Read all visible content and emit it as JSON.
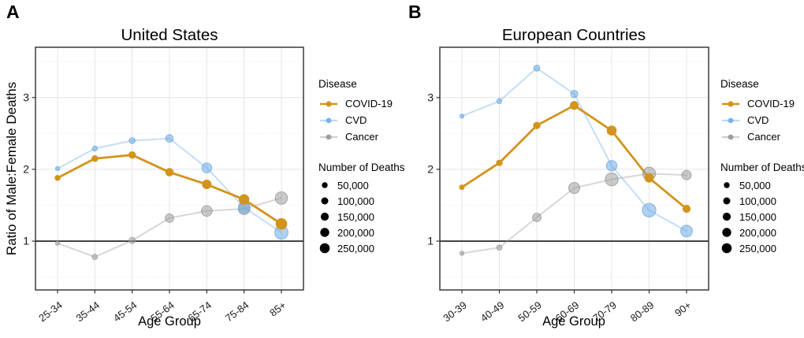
{
  "legend": {
    "disease_title": "Disease",
    "diseases": [
      {
        "label": "COVID-19",
        "color": "#D2941C"
      },
      {
        "label": "CVD",
        "color": "#6FACE4"
      },
      {
        "label": "Cancer",
        "color": "#969696"
      }
    ],
    "size_title": "Number of Deaths",
    "sizes": [
      {
        "label": "50,000",
        "r": 3.7
      },
      {
        "label": "100,000",
        "r": 4.5
      },
      {
        "label": "150,000",
        "r": 5.1
      },
      {
        "label": "200,000",
        "r": 5.7
      },
      {
        "label": "250,000",
        "r": 6.3
      }
    ]
  },
  "chart_data": [
    {
      "type": "line",
      "panel_label": "A",
      "title": "United States",
      "xlabel": "Age Group",
      "ylabel": "Ratio of Male:Female Deaths",
      "categories": [
        "25-34",
        "35-44",
        "45-54",
        "55-64",
        "65-74",
        "75-84",
        "85+"
      ],
      "ylim": [
        0.32,
        3.7
      ],
      "yticks": [
        1,
        2,
        3
      ],
      "yticks_minor": [
        0.5,
        1.5,
        2.5,
        3.5
      ],
      "reference_line_y": 1,
      "grid": true,
      "legend_position": "right",
      "size_legend_labels": [
        "50,000",
        "100,000",
        "150,000",
        "200,000",
        "250,000"
      ],
      "series": [
        {
          "name": "COVID-19",
          "color": "#D2941C",
          "line_width": 2.8,
          "line_opacity": 1,
          "marker_opacity": 1,
          "values": [
            1.88,
            2.15,
            2.2,
            1.96,
            1.79,
            1.58,
            1.24
          ],
          "marker_r": [
            3.2,
            3.8,
            4.2,
            4.8,
            5.5,
            6.2,
            6.8
          ]
        },
        {
          "name": "CVD",
          "color": "#6FACE4",
          "line_width": 2,
          "line_opacity": 0.4,
          "marker_opacity": 0.55,
          "values": [
            2.01,
            2.29,
            2.4,
            2.43,
            2.02,
            1.47,
            1.12
          ],
          "marker_r": [
            2.6,
            3.2,
            3.8,
            4.8,
            6.2,
            7.2,
            8.4
          ]
        },
        {
          "name": "Cancer",
          "color": "#969696",
          "line_width": 2,
          "line_opacity": 0.38,
          "marker_opacity": 0.5,
          "values": [
            0.97,
            0.78,
            1.01,
            1.32,
            1.42,
            1.45,
            1.6
          ],
          "marker_r": [
            2.6,
            3.4,
            4.0,
            5.4,
            6.8,
            7.4,
            7.8
          ]
        }
      ]
    },
    {
      "type": "line",
      "panel_label": "B",
      "title": "European Countries",
      "xlabel": "Age Group",
      "ylabel": "",
      "categories": [
        "30-39",
        "40-49",
        "50-59",
        "60-69",
        "70-79",
        "80-89",
        "90+"
      ],
      "ylim": [
        0.32,
        3.7
      ],
      "yticks": [
        1,
        2,
        3
      ],
      "yticks_minor": [
        0.5,
        1.5,
        2.5,
        3.5
      ],
      "reference_line_y": 1,
      "grid": true,
      "legend_position": "right",
      "size_legend_labels": [
        "50,000",
        "100,000",
        "150,000",
        "200,000",
        "250,000"
      ],
      "series": [
        {
          "name": "COVID-19",
          "color": "#D2941C",
          "line_width": 2.8,
          "line_opacity": 1,
          "marker_opacity": 1,
          "values": [
            1.75,
            2.09,
            2.61,
            2.89,
            2.54,
            1.88,
            1.45
          ],
          "marker_r": [
            3.0,
            3.6,
            4.2,
            5.0,
            5.8,
            5.4,
            4.6
          ]
        },
        {
          "name": "CVD",
          "color": "#6FACE4",
          "line_width": 2,
          "line_opacity": 0.4,
          "marker_opacity": 0.55,
          "values": [
            2.74,
            2.95,
            3.41,
            3.05,
            2.05,
            1.43,
            1.14
          ],
          "marker_r": [
            2.6,
            3.2,
            3.8,
            4.6,
            6.6,
            8.6,
            7.4
          ]
        },
        {
          "name": "Cancer",
          "color": "#969696",
          "line_width": 2,
          "line_opacity": 0.38,
          "marker_opacity": 0.5,
          "values": [
            0.83,
            0.91,
            1.33,
            1.74,
            1.86,
            1.94,
            1.92
          ],
          "marker_r": [
            2.6,
            3.4,
            5.4,
            7.0,
            8.2,
            8.2,
            6.0
          ]
        }
      ]
    }
  ]
}
